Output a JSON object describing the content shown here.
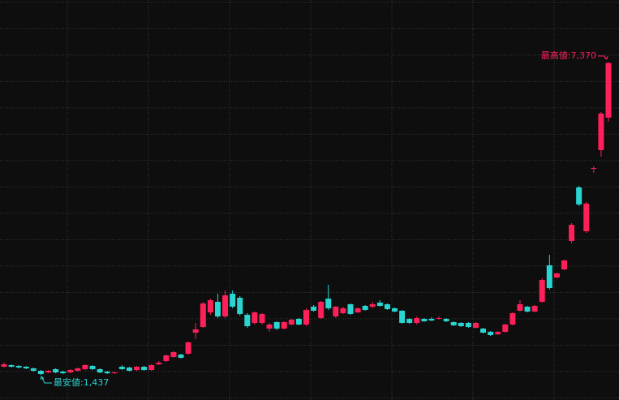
{
  "chart_data": {
    "type": "candlestick",
    "open": [
      1591,
      1622,
      1606,
      1591,
      1560,
      1514,
      1483,
      1545,
      1499,
      1483,
      1514,
      1545,
      1606,
      1545,
      1499,
      1468,
      1591,
      1576,
      1529,
      1591,
      1529,
      1637,
      1699,
      1776,
      1822,
      1837,
      2237,
      2345,
      2622,
      2822,
      2545,
      2976,
      2899,
      2576,
      2422,
      2422,
      2314,
      2437,
      2314,
      2391,
      2499,
      2391,
      2730,
      2514,
      2883,
      2545,
      2607,
      2776,
      2622,
      2745,
      2730,
      2807,
      2776,
      2699,
      2653,
      2499,
      2422,
      2499,
      2499,
      2499,
      2499,
      2437,
      2422,
      2422,
      2330,
      2314,
      2253,
      2207,
      2253,
      2391,
      2653,
      2730,
      2637,
      2822,
      3514,
      3283,
      3437,
      3976,
      4991,
      4160,
      5345,
      5699,
      6314
    ],
    "high": [
      1668,
      1637,
      1622,
      1606,
      1576,
      1529,
      1529,
      1560,
      1514,
      1545,
      1576,
      1637,
      1622,
      1560,
      1514,
      1499,
      1622,
      1591,
      1606,
      1606,
      1637,
      1699,
      1822,
      1883,
      1837,
      2068,
      2422,
      2822,
      2883,
      2976,
      3037,
      3037,
      2930,
      2607,
      2637,
      2607,
      2422,
      2453,
      2453,
      2499,
      2514,
      2699,
      2760,
      2837,
      3145,
      2745,
      2730,
      2791,
      2714,
      2760,
      2822,
      2852,
      2791,
      2714,
      2668,
      2514,
      2545,
      2514,
      2530,
      2545,
      2514,
      2453,
      2437,
      2437,
      2437,
      2330,
      2268,
      2268,
      2407,
      2622,
      2852,
      2745,
      2760,
      3268,
      3714,
      3376,
      3622,
      4314,
      5022,
      4714,
      5391,
      6422,
      7370
    ],
    "low": [
      1576,
      1576,
      1560,
      1545,
      1499,
      1437,
      1468,
      1468,
      1452,
      1468,
      1499,
      1529,
      1529,
      1468,
      1452,
      1452,
      1529,
      1499,
      1514,
      1514,
      1514,
      1622,
      1683,
      1760,
      1745,
      1822,
      2114,
      2330,
      2576,
      2514,
      2514,
      2699,
      2560,
      2330,
      2391,
      2391,
      2253,
      2283,
      2299,
      2376,
      2376,
      2360,
      2637,
      2499,
      2668,
      2514,
      2591,
      2576,
      2607,
      2653,
      2699,
      2730,
      2668,
      2622,
      2407,
      2407,
      2391,
      2437,
      2453,
      2483,
      2437,
      2360,
      2345,
      2330,
      2314,
      2222,
      2176,
      2191,
      2237,
      2376,
      2637,
      2622,
      2622,
      2807,
      3053,
      3268,
      3422,
      3930,
      4637,
      4130,
      5268,
      5576,
      6237
    ],
    "close": [
      1637,
      1591,
      1576,
      1560,
      1514,
      1452,
      1514,
      1483,
      1468,
      1529,
      1560,
      1622,
      1545,
      1483,
      1468,
      1483,
      1545,
      1514,
      1591,
      1529,
      1622,
      1668,
      1806,
      1868,
      1760,
      2053,
      2299,
      2791,
      2852,
      2545,
      2945,
      2730,
      2591,
      2360,
      2622,
      2591,
      2391,
      2314,
      2437,
      2483,
      2391,
      2668,
      2653,
      2822,
      2699,
      2730,
      2699,
      2591,
      2699,
      2668,
      2776,
      2745,
      2684,
      2637,
      2422,
      2422,
      2514,
      2453,
      2468,
      2514,
      2453,
      2376,
      2360,
      2345,
      2422,
      2237,
      2191,
      2253,
      2391,
      2607,
      2776,
      2637,
      2745,
      3237,
      3083,
      3360,
      3606,
      4283,
      4668,
      4683,
      5360,
      6391,
      7350
    ],
    "up_color": "#ff1f5a",
    "down_color": "#2ad4d0",
    "ylim": [
      960,
      8545
    ],
    "yticks": [
      1000,
      1500,
      2000,
      2500,
      3000,
      3500,
      4000,
      4500,
      5000,
      5500,
      6000,
      6500,
      7000,
      7500,
      8000,
      8500
    ],
    "grid": true,
    "annotations": [
      "最高値:7,370",
      "最安値:1,437"
    ]
  }
}
